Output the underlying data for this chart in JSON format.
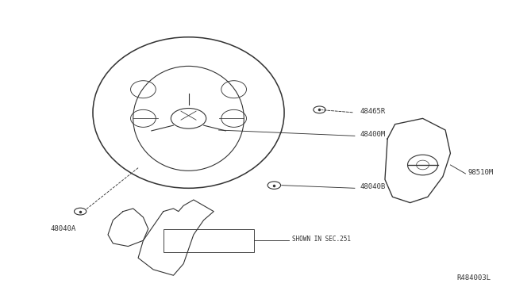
{
  "title": "",
  "background_color": "#ffffff",
  "fig_width": 6.4,
  "fig_height": 3.72,
  "dpi": 100,
  "diagram_ref": "R484003L",
  "parts": [
    {
      "label": "48465R",
      "x_label": 0.71,
      "y_label": 0.625
    },
    {
      "label": "48400M",
      "x_label": 0.71,
      "y_label": 0.545
    },
    {
      "label": "48040B",
      "x_label": 0.71,
      "y_label": 0.365
    },
    {
      "label": "48040A",
      "x_label": 0.095,
      "y_label": 0.22
    },
    {
      "label": "98510M",
      "x_label": 0.925,
      "y_label": 0.415
    },
    {
      "label": "SHOWN IN SEC.251",
      "x_label": 0.575,
      "y_label": 0.185
    }
  ],
  "line_color": "#333333",
  "text_color": "#333333",
  "line_width": 0.8
}
